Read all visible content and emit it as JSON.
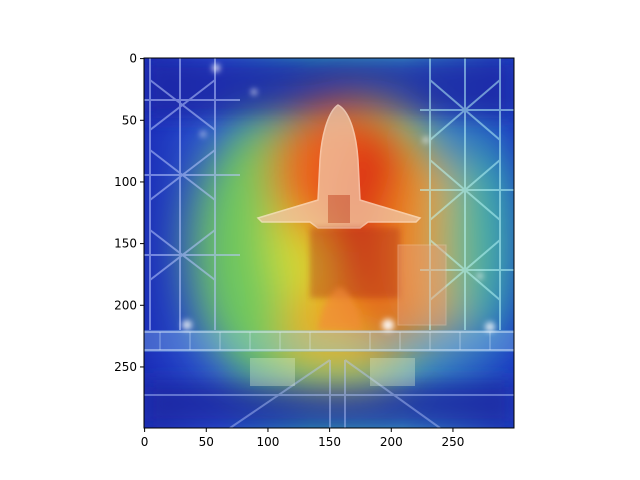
{
  "figure": {
    "x_ticks": [
      "0",
      "50",
      "100",
      "150",
      "200",
      "250"
    ],
    "y_ticks": [
      "0",
      "50",
      "100",
      "150",
      "200",
      "250"
    ],
    "x_range": [
      0,
      299
    ],
    "y_range": [
      0,
      299
    ],
    "y_inverted": true,
    "colormap": "jet",
    "background": "#ffffff",
    "axis_color": "#000000",
    "image_subject": "space shuttle stacked in vehicle assembly building with heatmap overlay"
  }
}
